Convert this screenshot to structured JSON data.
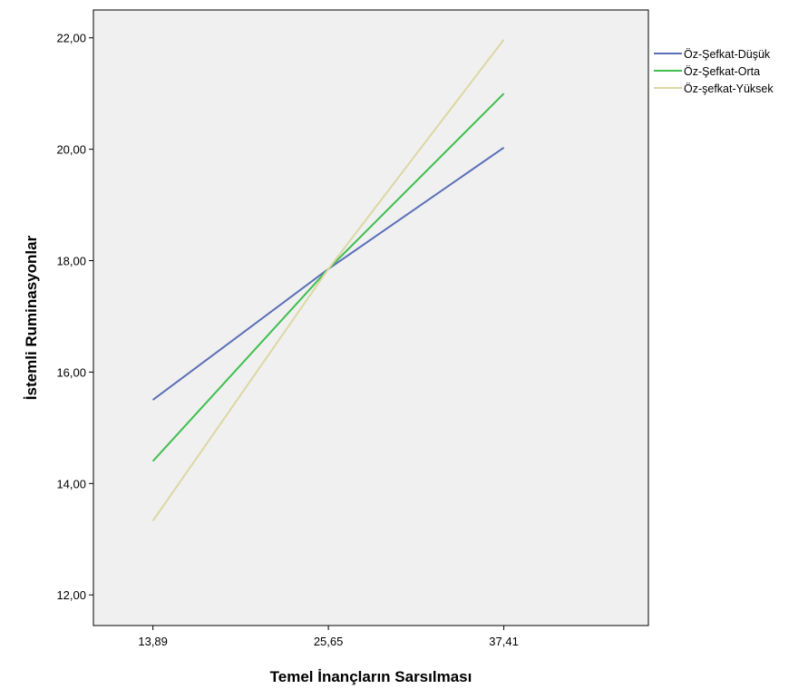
{
  "chart_data": {
    "type": "line",
    "title": "",
    "xlabel": "Temel İnançların Sarsılması",
    "ylabel": "İstemli Ruminasyonlar",
    "x": [
      13.89,
      25.65,
      37.41
    ],
    "x_tick_labels": [
      "13,89",
      "25,65",
      "37,41"
    ],
    "xlim": [
      9.9,
      47.1
    ],
    "ylim": [
      11.45,
      22.5
    ],
    "y_ticks": [
      12,
      14,
      16,
      18,
      20,
      22
    ],
    "y_tick_labels": [
      "12,00",
      "14,00",
      "16,00",
      "18,00",
      "20,00",
      "22,00"
    ],
    "grid": false,
    "legend_placement": "right",
    "series": [
      {
        "name": "Öz-Şefkat-Düşük",
        "color": "#5a6fb8",
        "values": [
          15.5,
          17.85,
          20.03
        ]
      },
      {
        "name": "Öz-Şefkat-Orta",
        "color": "#3fbf4f",
        "values": [
          14.4,
          17.85,
          21.0
        ]
      },
      {
        "name": "Öz-şefkat-Yüksek",
        "color": "#dcd7a3",
        "values": [
          13.33,
          17.85,
          21.97
        ]
      }
    ]
  }
}
